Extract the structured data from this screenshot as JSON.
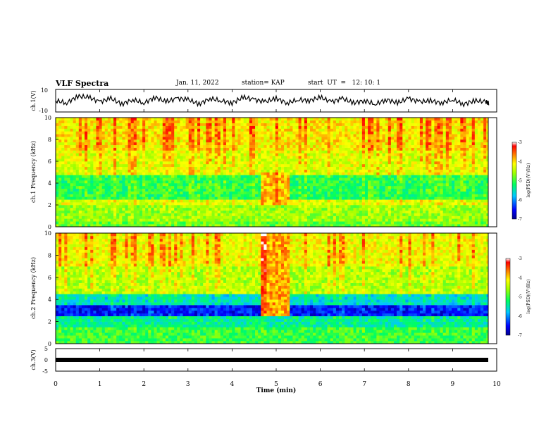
{
  "header": {
    "title": "VLF Spectra",
    "date": "Jan. 11, 2022",
    "station": "station= KAP",
    "start": "start  UT  =   12: 10: 1"
  },
  "chart_data": [
    {
      "type": "line",
      "id": "ch1-waveform",
      "ylabel": "ch.1(V)",
      "ylim": [
        -10,
        10
      ],
      "yticks": [
        "10",
        "-10"
      ],
      "xlim": [
        0,
        10
      ],
      "series": [
        {
          "color": "#000000",
          "x": [
            0,
            0.25,
            0.5,
            0.75,
            1,
            1.25,
            1.5,
            1.75,
            2,
            2.25,
            2.5,
            2.75,
            3,
            3.25,
            3.5,
            3.75,
            4,
            4.25,
            4.5,
            4.75,
            5,
            5.25,
            5.5,
            5.75,
            6,
            6.25,
            6.5,
            6.75,
            7,
            7.25,
            7.5,
            7.75,
            8,
            8.25,
            8.5,
            8.75,
            9,
            9.25,
            9.5,
            9.75,
            9.83
          ],
          "values": [
            0,
            -2,
            4,
            3,
            -1,
            2,
            -3,
            1,
            -2,
            3,
            -1,
            2,
            1,
            -3,
            2,
            0,
            -2,
            3,
            1,
            -1,
            2,
            -2,
            1,
            0,
            3,
            -1,
            2,
            -2,
            0,
            -3,
            1,
            -2,
            2,
            -1,
            0,
            -2,
            1,
            -3,
            0,
            -1,
            -2
          ]
        }
      ]
    },
    {
      "type": "heatmap",
      "id": "ch1-spectrogram",
      "ylabel": "ch.1 Frequency (kHz)",
      "ylim": [
        0,
        10
      ],
      "yticks": [
        "0",
        "2",
        "4",
        "6",
        "8",
        "10"
      ],
      "xlim": [
        0,
        10
      ],
      "colorbar": {
        "label": "log(PSD)(V²/Hz)",
        "range": [
          -7,
          -3
        ],
        "ticks": [
          "-3",
          "-4",
          "-5",
          "-6",
          "-7"
        ]
      },
      "bands_kHz": [
        {
          "from": 0,
          "to": 0.6,
          "level": -4.8
        },
        {
          "from": 0.6,
          "to": 2.0,
          "level": -4.6
        },
        {
          "from": 2.0,
          "to": 2.4,
          "level": -4.3
        },
        {
          "from": 2.4,
          "to": 4.8,
          "level": -5.1
        },
        {
          "from": 4.8,
          "to": 7.0,
          "level": -4.3
        },
        {
          "from": 7.0,
          "to": 10,
          "level": -4.1
        }
      ],
      "burst": {
        "t_from": 4.65,
        "t_to": 5.3,
        "f_from": 2.0,
        "f_to": 5.0,
        "level": -3.9
      }
    },
    {
      "type": "heatmap",
      "id": "ch2-spectrogram",
      "ylabel": "ch.2 Frequency (kHz)",
      "ylim": [
        0,
        10
      ],
      "yticks": [
        "0",
        "2",
        "4",
        "6",
        "8",
        "10"
      ],
      "xlim": [
        0,
        10
      ],
      "colorbar": {
        "label": "log(PSD)(V²/Hz)",
        "range": [
          -7,
          -3
        ],
        "ticks": [
          "-3",
          "-4",
          "-5",
          "-6",
          "-7"
        ]
      },
      "bands_kHz": [
        {
          "from": 0,
          "to": 1.4,
          "level": -5.0
        },
        {
          "from": 1.4,
          "to": 2.4,
          "level": -5.4
        },
        {
          "from": 2.4,
          "to": 3.6,
          "level": -6.5
        },
        {
          "from": 3.6,
          "to": 4.6,
          "level": -5.6
        },
        {
          "from": 4.6,
          "to": 7.0,
          "level": -4.5
        },
        {
          "from": 7.0,
          "to": 10,
          "level": -4.2
        }
      ],
      "burst": {
        "t_from": 4.65,
        "t_to": 5.3,
        "f_from": 2.5,
        "f_to": 10,
        "level": -3.8
      }
    },
    {
      "type": "line",
      "id": "ch3-waveform",
      "ylabel": "ch.3(V)",
      "ylim": [
        -5,
        5
      ],
      "yticks": [
        "5",
        "0",
        "-5"
      ],
      "xlim": [
        0,
        10
      ],
      "xlabel": "Time  (min)",
      "xticks": [
        "0",
        "1",
        "2",
        "3",
        "4",
        "5",
        "6",
        "7",
        "8",
        "9",
        "10"
      ],
      "series": [
        {
          "color": "#000000",
          "x": [
            0,
            9.83
          ],
          "values": [
            0,
            0
          ]
        }
      ]
    }
  ]
}
